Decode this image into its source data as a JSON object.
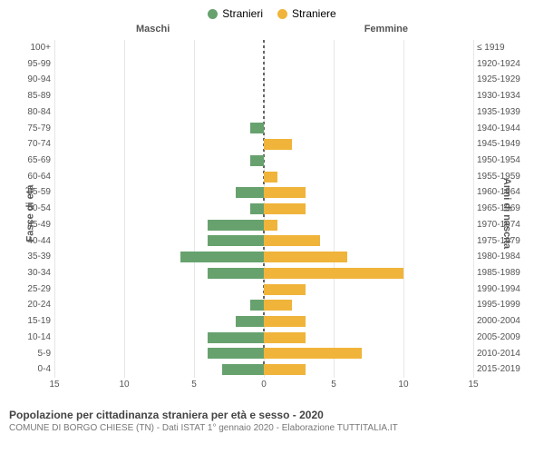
{
  "legend": {
    "male": "Stranieri",
    "female": "Straniere",
    "male_color": "#67a26e",
    "female_color": "#f0b43a"
  },
  "headers": {
    "left": "Maschi",
    "right": "Femmine"
  },
  "axes": {
    "left_title": "Fasce di età",
    "right_title": "Anni di nascita",
    "xlim": 15,
    "x_ticks": [
      15,
      10,
      5,
      0,
      5,
      10,
      15
    ],
    "x_tick_positions_pct": [
      0,
      16.67,
      33.33,
      50,
      66.67,
      83.33,
      100
    ],
    "grid_positions_pct": [
      0,
      16.67,
      33.33,
      50,
      66.67,
      83.33,
      100
    ]
  },
  "rows": [
    {
      "age": "100+",
      "birth": "≤ 1919",
      "m": 0,
      "f": 0
    },
    {
      "age": "95-99",
      "birth": "1920-1924",
      "m": 0,
      "f": 0
    },
    {
      "age": "90-94",
      "birth": "1925-1929",
      "m": 0,
      "f": 0
    },
    {
      "age": "85-89",
      "birth": "1930-1934",
      "m": 0,
      "f": 0
    },
    {
      "age": "80-84",
      "birth": "1935-1939",
      "m": 0,
      "f": 0
    },
    {
      "age": "75-79",
      "birth": "1940-1944",
      "m": 1,
      "f": 0
    },
    {
      "age": "70-74",
      "birth": "1945-1949",
      "m": 0,
      "f": 2
    },
    {
      "age": "65-69",
      "birth": "1950-1954",
      "m": 1,
      "f": 0
    },
    {
      "age": "60-64",
      "birth": "1955-1959",
      "m": 0,
      "f": 1
    },
    {
      "age": "55-59",
      "birth": "1960-1964",
      "m": 2,
      "f": 3
    },
    {
      "age": "50-54",
      "birth": "1965-1969",
      "m": 1,
      "f": 3
    },
    {
      "age": "45-49",
      "birth": "1970-1974",
      "m": 4,
      "f": 1
    },
    {
      "age": "40-44",
      "birth": "1975-1979",
      "m": 4,
      "f": 4
    },
    {
      "age": "35-39",
      "birth": "1980-1984",
      "m": 6,
      "f": 6
    },
    {
      "age": "30-34",
      "birth": "1985-1989",
      "m": 4,
      "f": 10
    },
    {
      "age": "25-29",
      "birth": "1990-1994",
      "m": 0,
      "f": 3
    },
    {
      "age": "20-24",
      "birth": "1995-1999",
      "m": 1,
      "f": 2
    },
    {
      "age": "15-19",
      "birth": "2000-2004",
      "m": 2,
      "f": 3
    },
    {
      "age": "10-14",
      "birth": "2005-2009",
      "m": 4,
      "f": 3
    },
    {
      "age": "5-9",
      "birth": "2010-2014",
      "m": 4,
      "f": 7
    },
    {
      "age": "0-4",
      "birth": "2015-2019",
      "m": 3,
      "f": 3
    }
  ],
  "colors": {
    "background": "#ffffff",
    "grid": "#e6e6e6",
    "text": "#555555"
  },
  "title": "Popolazione per cittadinanza straniera per età e sesso - 2020",
  "subtitle": "COMUNE DI BORGO CHIESE (TN) - Dati ISTAT 1° gennaio 2020 - Elaborazione TUTTITALIA.IT"
}
